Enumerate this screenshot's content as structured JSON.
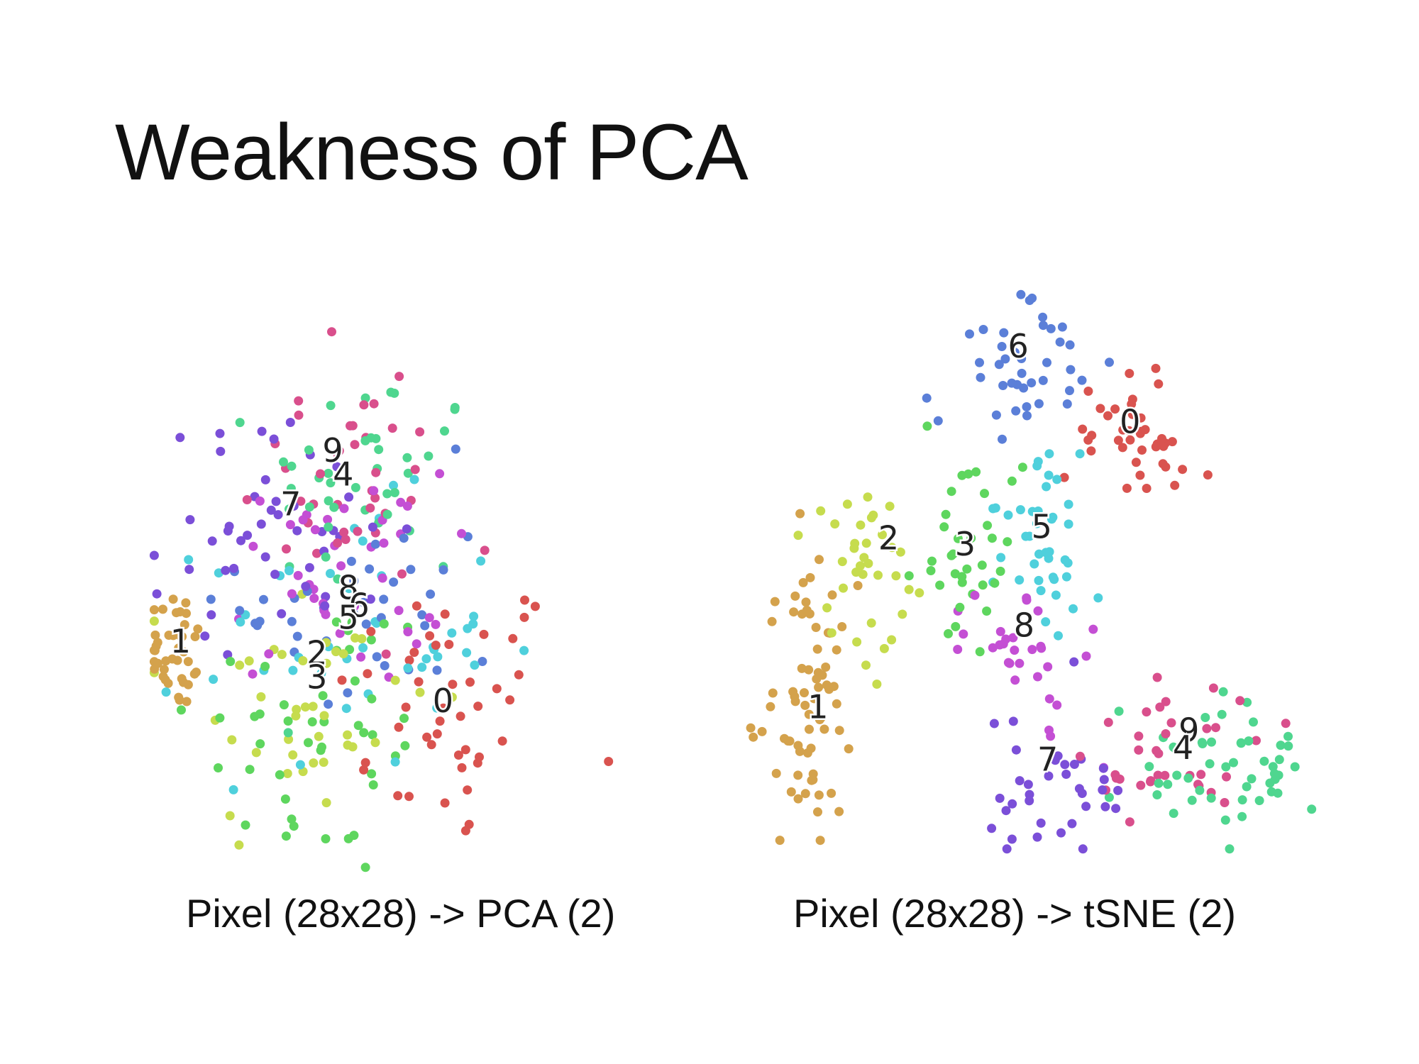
{
  "slide": {
    "title": "Weakness of PCA"
  },
  "chart_data": [
    {
      "type": "scatter",
      "title": "",
      "caption": "Pixel (28x28) -> PCA (2)",
      "xlabel": "",
      "ylabel": "",
      "grid": false,
      "legend": "none",
      "xlim": [
        0,
        100
      ],
      "ylim": [
        0,
        100
      ],
      "classes": [
        {
          "label": "0",
          "color": "#d9534f",
          "center": [
            57,
            28
          ],
          "spread": [
            11,
            12
          ],
          "count": 45
        },
        {
          "label": "1",
          "color": "#d4a24c",
          "center": [
            5,
            38
          ],
          "spread": [
            3,
            5
          ],
          "count": 40
        },
        {
          "label": "2",
          "color": "#c6dc4e",
          "center": [
            30,
            28
          ],
          "spread": [
            12,
            13
          ],
          "count": 40
        },
        {
          "label": "3",
          "color": "#5ed65e",
          "center": [
            32,
            24
          ],
          "spread": [
            12,
            13
          ],
          "count": 45
        },
        {
          "label": "4",
          "color": "#4fd68f",
          "center": [
            42,
            66
          ],
          "spread": [
            10,
            10
          ],
          "count": 40
        },
        {
          "label": "5",
          "color": "#4fd0dc",
          "center": [
            38,
            40
          ],
          "spread": [
            14,
            11
          ],
          "count": 45
        },
        {
          "label": "6",
          "color": "#5b7fd8",
          "center": [
            42,
            46
          ],
          "spread": [
            12,
            11
          ],
          "count": 40
        },
        {
          "label": "7",
          "color": "#7b4fd8",
          "center": [
            24,
            58
          ],
          "spread": [
            12,
            9
          ],
          "count": 45
        },
        {
          "label": "8",
          "color": "#c44fd4",
          "center": [
            36,
            50
          ],
          "spread": [
            10,
            9
          ],
          "count": 40
        },
        {
          "label": "9",
          "color": "#d94f8c",
          "center": [
            36,
            66
          ],
          "spread": [
            10,
            10
          ],
          "count": 40
        }
      ],
      "annotations": [
        {
          "text": "1",
          "x": 6,
          "y": 39
        },
        {
          "text": "9",
          "x": 35,
          "y": 71
        },
        {
          "text": "4",
          "x": 37,
          "y": 67
        },
        {
          "text": "7",
          "x": 27,
          "y": 62
        },
        {
          "text": "8",
          "x": 38,
          "y": 48
        },
        {
          "text": "6",
          "x": 40,
          "y": 45
        },
        {
          "text": "5",
          "x": 38,
          "y": 43
        },
        {
          "text": "2",
          "x": 32,
          "y": 37
        },
        {
          "text": "3",
          "x": 32,
          "y": 33
        },
        {
          "text": "0",
          "x": 56,
          "y": 29
        }
      ]
    },
    {
      "type": "scatter",
      "title": "",
      "caption": "Pixel (28x28) -> tSNE (2)",
      "xlabel": "",
      "ylabel": "",
      "grid": false,
      "legend": "none",
      "xlim": [
        0,
        100
      ],
      "ylim": [
        0,
        100
      ],
      "classes": [
        {
          "label": "0",
          "color": "#d9534f",
          "center": [
            67,
            72
          ],
          "spread": [
            6,
            6
          ],
          "count": 40
        },
        {
          "label": "1",
          "color": "#d4a24c",
          "center": [
            11,
            25
          ],
          "spread": [
            4,
            11
          ],
          "count": 70
        },
        {
          "label": "2",
          "color": "#c6dc4e",
          "center": [
            21,
            51
          ],
          "spread": [
            5,
            9
          ],
          "count": 35
        },
        {
          "label": "3",
          "color": "#5ed65e",
          "center": [
            38,
            52
          ],
          "spread": [
            5,
            7
          ],
          "count": 35
        },
        {
          "label": "4",
          "color": "#4fd68f",
          "center": [
            83,
            14
          ],
          "spread": [
            9,
            6
          ],
          "count": 50
        },
        {
          "label": "5",
          "color": "#4fd0dc",
          "center": [
            51,
            53
          ],
          "spread": [
            5,
            8
          ],
          "count": 40
        },
        {
          "label": "6",
          "color": "#5b7fd8",
          "center": [
            47,
            84
          ],
          "spread": [
            6,
            6
          ],
          "count": 40
        },
        {
          "label": "7",
          "color": "#7b4fd8",
          "center": [
            52,
            12
          ],
          "spread": [
            7,
            6
          ],
          "count": 35
        },
        {
          "label": "8",
          "color": "#c44fd4",
          "center": [
            48,
            35
          ],
          "spread": [
            5,
            6
          ],
          "count": 30
        },
        {
          "label": "9",
          "color": "#d94f8c",
          "center": [
            74,
            18
          ],
          "spread": [
            7,
            7
          ],
          "count": 35
        }
      ],
      "annotations": [
        {
          "text": "6",
          "x": 47,
          "y": 87
        },
        {
          "text": "0",
          "x": 66,
          "y": 74
        },
        {
          "text": "2",
          "x": 25,
          "y": 54
        },
        {
          "text": "3",
          "x": 38,
          "y": 53
        },
        {
          "text": "5",
          "x": 51,
          "y": 56
        },
        {
          "text": "8",
          "x": 48,
          "y": 39
        },
        {
          "text": "1",
          "x": 13,
          "y": 25
        },
        {
          "text": "7",
          "x": 52,
          "y": 16
        },
        {
          "text": "9",
          "x": 76,
          "y": 21
        },
        {
          "text": "4",
          "x": 75,
          "y": 18
        }
      ]
    }
  ]
}
